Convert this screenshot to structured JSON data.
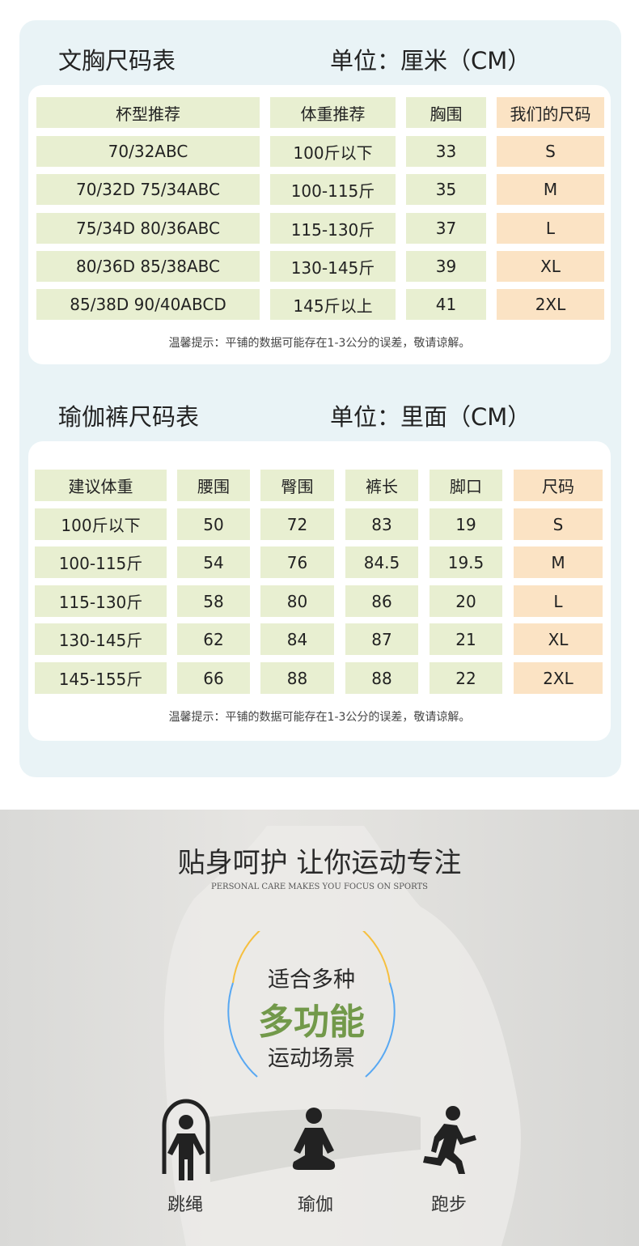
{
  "bra": {
    "title": "文胸尺码表",
    "unit": "单位：厘米（CM）",
    "headers": [
      "杯型推荐",
      "体重推荐",
      "胸围",
      "我们的尺码"
    ],
    "rows": [
      [
        "70/32ABC",
        "100斤以下",
        "33",
        "S"
      ],
      [
        "70/32D  75/34ABC",
        "100-115斤",
        "35",
        "M"
      ],
      [
        "75/34D  80/36ABC",
        "115-130斤",
        "37",
        "L"
      ],
      [
        "80/36D  85/38ABC",
        "130-145斤",
        "39",
        "XL"
      ],
      [
        "85/38D  90/40ABCD",
        "145斤以上",
        "41",
        "2XL"
      ]
    ],
    "note": "温馨提示：平铺的数据可能存在1-3公分的误差，敬请谅解。"
  },
  "pants": {
    "title": "瑜伽裤尺码表",
    "unit": "单位：里面（CM）",
    "headers": [
      "建议体重",
      "腰围",
      "臀围",
      "裤长",
      "脚口",
      "尺码"
    ],
    "rows": [
      [
        "100斤以下",
        "50",
        "72",
        "83",
        "19",
        "S"
      ],
      [
        "100-115斤",
        "54",
        "76",
        "84.5",
        "19.5",
        "M"
      ],
      [
        "115-130斤",
        "58",
        "80",
        "86",
        "20",
        "L"
      ],
      [
        "130-145斤",
        "62",
        "84",
        "87",
        "21",
        "XL"
      ],
      [
        "145-155斤",
        "66",
        "88",
        "88",
        "22",
        "2XL"
      ]
    ],
    "note": "温馨提示：平铺的数据可能存在1-3公分的误差，敬请谅解。"
  },
  "promo": {
    "title": "贴身呵护 让你运动专注",
    "subtitle": "PERSONAL CARE MAKES YOU FOCUS ON SPORTS",
    "line1": "适合多种",
    "highlight": "多功能",
    "line3": "运动场景",
    "activities": [
      {
        "icon": "jump-rope-icon",
        "label": "跳绳"
      },
      {
        "icon": "yoga-icon",
        "label": "瑜伽"
      },
      {
        "icon": "running-icon",
        "label": "跑步"
      }
    ]
  },
  "colors": {
    "panel": "#e9f3f6",
    "cell_green": "#e8efd1",
    "cell_orange": "#fbe3c4",
    "highlight": "#72994a",
    "arc_top": "#f6bf3e",
    "arc_bottom": "#58a8f2"
  }
}
